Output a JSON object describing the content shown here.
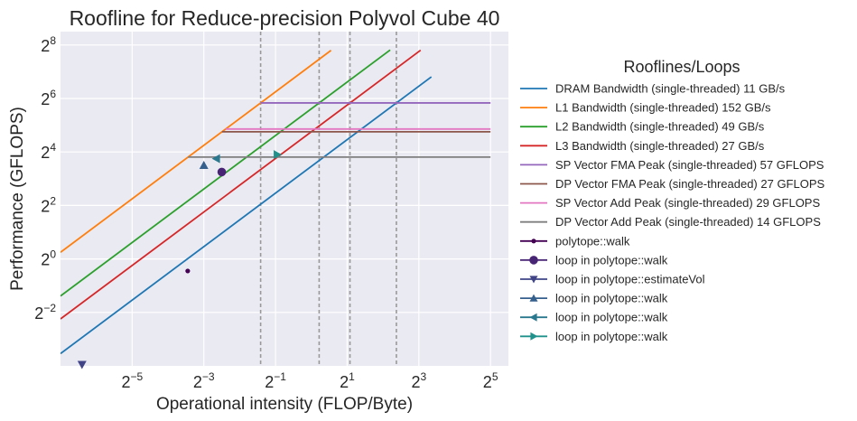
{
  "chart_data": {
    "type": "line",
    "title": "Roofline for Reduce-precision Polyvol Cube 40",
    "xlabel": "Operational intensity (FLOP/Byte)",
    "ylabel": "Performance (GFLOPS)",
    "xscale": "log2",
    "yscale": "log2",
    "xlim_log2": [
      -7.0,
      5.5
    ],
    "ylim_log2": [
      -4.0,
      8.5
    ],
    "xticks": [
      {
        "base": "2",
        "exp": "−5",
        "log2": -5
      },
      {
        "base": "2",
        "exp": "−3",
        "log2": -3
      },
      {
        "base": "2",
        "exp": "−1",
        "log2": -1
      },
      {
        "base": "2",
        "exp": "1",
        "log2": 1
      },
      {
        "base": "2",
        "exp": "3",
        "log2": 3
      },
      {
        "base": "2",
        "exp": "5",
        "log2": 5
      }
    ],
    "yticks": [
      {
        "base": "2",
        "exp": "−2",
        "log2": -2
      },
      {
        "base": "2",
        "exp": "0",
        "log2": 0
      },
      {
        "base": "2",
        "exp": "2",
        "log2": 2
      },
      {
        "base": "2",
        "exp": "4",
        "log2": 4
      },
      {
        "base": "2",
        "exp": "6",
        "log2": 6
      },
      {
        "base": "2",
        "exp": "8",
        "log2": 8
      }
    ],
    "grid": true,
    "legend_title": "Rooflines/Loops",
    "legend_position": "outside-right",
    "bandwidths": [
      {
        "name": "DRAM Bandwidth (single-threaded) 11 GB/s",
        "gbps": 11,
        "color": "#1f77b4",
        "x_end_log2": 3.35
      },
      {
        "name": "L1 Bandwidth (single-threaded) 152 GB/s",
        "gbps": 152,
        "color": "#ff7f0e",
        "x_end_log2": 0.55
      },
      {
        "name": "L2 Bandwidth (single-threaded) 49 GB/s",
        "gbps": 49,
        "color": "#2ca02c",
        "x_end_log2": 2.2
      },
      {
        "name": "L3 Bandwidth (single-threaded) 27 GB/s",
        "gbps": 27,
        "color": "#d62728",
        "x_end_log2": 3.05
      }
    ],
    "peaks": [
      {
        "name": "SP Vector FMA Peak (single-threaded) 57 GFLOPS",
        "gflops": 57,
        "color": "#9467bd"
      },
      {
        "name": "DP Vector FMA Peak (single-threaded) 27 GFLOPS",
        "gflops": 27,
        "color": "#8c564b"
      },
      {
        "name": "SP Vector Add Peak (single-threaded) 29 GFLOPS",
        "gflops": 29,
        "color": "#e377c2"
      },
      {
        "name": "DP Vector Add Peak (single-threaded) 14 GFLOPS",
        "gflops": 14,
        "color": "#7f7f7f"
      }
    ],
    "peak_x_end_log2": 5,
    "loops": [
      {
        "name": "polytope::walk",
        "marker": "dot",
        "color": "#440154",
        "x_log2": -3.45,
        "y_log2": -0.45
      },
      {
        "name": "loop in polytope::walk",
        "marker": "circle",
        "color": "#482475",
        "x_log2": -2.5,
        "y_log2": 3.25
      },
      {
        "name": "loop in polytope::estimateVol",
        "marker": "triangle-down",
        "color": "#414487",
        "x_log2": -6.4,
        "y_log2": -3.95
      },
      {
        "name": "loop in polytope::walk",
        "marker": "triangle-up",
        "color": "#355f8d",
        "x_log2": -3.0,
        "y_log2": 3.5
      },
      {
        "name": "loop in polytope::walk",
        "marker": "triangle-left",
        "color": "#2a788e",
        "x_log2": -2.65,
        "y_log2": 3.75
      },
      {
        "name": "loop in polytope::walk",
        "marker": "triangle-right",
        "color": "#21918c",
        "x_log2": -0.95,
        "y_log2": 3.9
      }
    ]
  }
}
